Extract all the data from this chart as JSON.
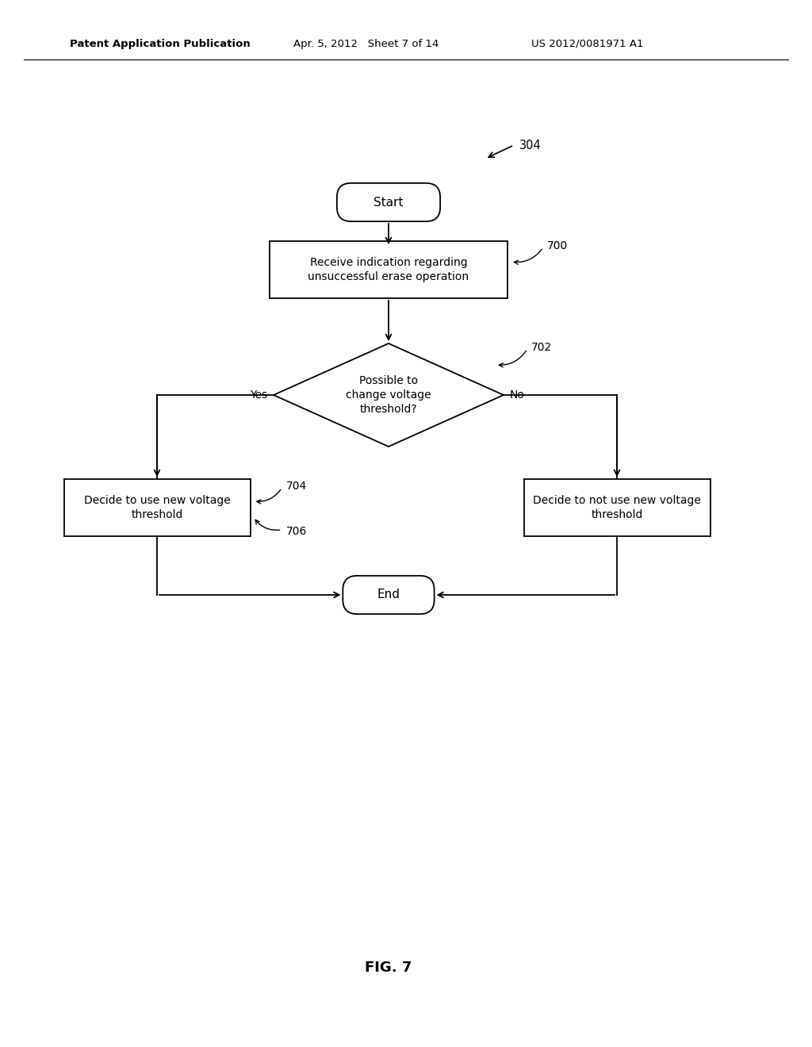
{
  "background_color": "#ffffff",
  "header_left": "Patent Application Publication",
  "header_mid": "Apr. 5, 2012   Sheet 7 of 14",
  "header_right": "US 2012/0081971 A1",
  "fig_label": "FIG. 7",
  "diagram_label": "304",
  "node_start": "Start",
  "node_end": "End",
  "node_700_text": "Receive indication regarding\nunsuccessful erase operation",
  "node_700_label": "700",
  "node_702_text": "Possible to\nchange voltage\nthreshold?",
  "node_702_label": "702",
  "node_704_text": "Decide to use new voltage\nthreshold",
  "node_704_label": "704",
  "node_706_text": "Decide to not use new voltage\nthreshold",
  "node_706_label": "706",
  "yes_label": "Yes",
  "no_label": "No",
  "line_color": "#000000",
  "text_color": "#000000",
  "font_family": "DejaVu Sans"
}
